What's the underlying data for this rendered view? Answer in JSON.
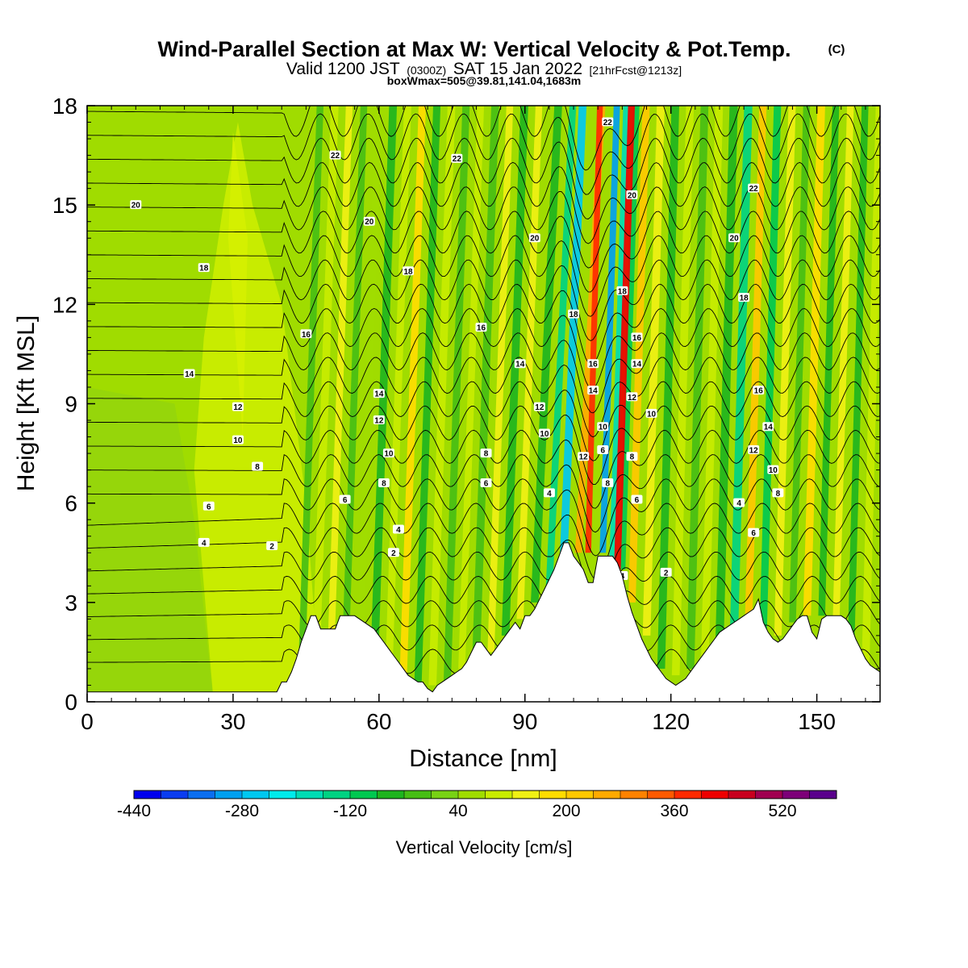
{
  "header": {
    "title_main": "Wind-Parallel Section at Max W: Vertical Velocity & Pot.Temp.",
    "title_mark": "(C)",
    "valid_a": "Valid 1200 JST",
    "valid_b": "(0300Z)",
    "valid_c": "SAT 15 Jan 2022",
    "valid_d": "[21hrFcst@1213z]",
    "box_info": "boxWmax=505@39.81,141.04,1683m"
  },
  "chart_data": {
    "type": "heatmap",
    "title": "Wind-Parallel Section at Max W: Vertical Velocity & Pot.Temp.",
    "xlabel": "Distance [nm]",
    "ylabel": "Height [Kft MSL]",
    "xlim": [
      0,
      163
    ],
    "ylim": [
      0,
      18
    ],
    "x_ticks": [
      "0",
      "30",
      "60",
      "90",
      "120",
      "150"
    ],
    "y_ticks": [
      "0",
      "3",
      "6",
      "9",
      "12",
      "15",
      "18"
    ],
    "colorbar": {
      "label": "Vertical Velocity [cm/s]",
      "tick_labels": [
        "-440",
        "-280",
        "-120",
        "40",
        "200",
        "360",
        "520"
      ],
      "levels_min": -440,
      "levels_step": 40,
      "colors": [
        "#0000ee",
        "#0a3cf0",
        "#0a6ef0",
        "#00a0f0",
        "#00c8f0",
        "#00ebeb",
        "#00dcb4",
        "#00d282",
        "#00c850",
        "#1eb41e",
        "#46be14",
        "#78d214",
        "#a0dc00",
        "#c8ec00",
        "#f0f014",
        "#ffdc00",
        "#ffc800",
        "#ffaa00",
        "#ff8200",
        "#ff5a00",
        "#ff2a00",
        "#ee0000",
        "#c8001e",
        "#a00050",
        "#7d0078",
        "#5a008c"
      ]
    },
    "series": [
      {
        "name": "Vertical Velocity [cm/s]",
        "max_label": "505",
        "min_approx": -300
      },
      {
        "name": "Pot.Temp.",
        "contour_values": [
          2,
          4,
          6,
          8,
          10,
          12,
          14,
          16,
          18,
          20,
          22
        ]
      }
    ],
    "terrain_kft": {
      "x": [
        0,
        39,
        40,
        41,
        42,
        43,
        44,
        45,
        46,
        47,
        48,
        51,
        52,
        53,
        54,
        55,
        59,
        60,
        61,
        62,
        63,
        64,
        65,
        66,
        67,
        68,
        69,
        70,
        71,
        72,
        73,
        74,
        75,
        76,
        77,
        78,
        79,
        80,
        81,
        82,
        83,
        84,
        85,
        86,
        87,
        88,
        89,
        90,
        91,
        92,
        93,
        94,
        95,
        96,
        97,
        98,
        99,
        100,
        101,
        102,
        103,
        104,
        105,
        106,
        107,
        108,
        109,
        110,
        111,
        112,
        113,
        114,
        115,
        116,
        117,
        118,
        119,
        120,
        121,
        122,
        123,
        124,
        125,
        126,
        127,
        128,
        129,
        130,
        131,
        132,
        133,
        134,
        135,
        136,
        137,
        138,
        139,
        140,
        141,
        142,
        143,
        144,
        145,
        146,
        147,
        148,
        149,
        150,
        151,
        152,
        153,
        154,
        155,
        156,
        157,
        158,
        159,
        160,
        161,
        162,
        163
      ],
      "h": [
        0.3,
        0.3,
        0.6,
        0.6,
        0.9,
        1.3,
        1.8,
        2.2,
        2.6,
        2.6,
        2.2,
        2.2,
        2.6,
        2.6,
        2.6,
        2.6,
        2.2,
        2.0,
        1.8,
        1.6,
        1.4,
        1.2,
        1.0,
        0.8,
        0.7,
        0.6,
        0.6,
        0.4,
        0.3,
        0.5,
        0.6,
        0.7,
        0.8,
        0.9,
        1.0,
        1.2,
        1.5,
        1.8,
        1.8,
        1.6,
        1.4,
        1.6,
        1.8,
        2.0,
        2.2,
        2.4,
        2.2,
        2.6,
        2.6,
        2.8,
        3.1,
        3.4,
        3.7,
        4.0,
        4.4,
        4.8,
        4.8,
        4.4,
        4.2,
        4.0,
        3.6,
        3.6,
        4.4,
        4.4,
        4.4,
        4.4,
        4.2,
        3.8,
        3.2,
        2.7,
        2.3,
        1.9,
        1.6,
        1.3,
        1.1,
        0.9,
        0.7,
        0.6,
        0.5,
        0.6,
        0.7,
        0.9,
        1.1,
        1.3,
        1.5,
        1.7,
        1.9,
        2.1,
        2.2,
        2.3,
        2.4,
        2.5,
        2.6,
        2.7,
        2.8,
        3.1,
        2.4,
        2.1,
        1.9,
        1.8,
        1.9,
        2.1,
        2.3,
        2.5,
        2.6,
        2.6,
        2.1,
        1.9,
        2.5,
        2.6,
        2.6,
        2.6,
        2.6,
        2.5,
        2.3,
        1.9,
        1.6,
        1.3,
        1.1,
        1.0,
        0.9
      ]
    }
  }
}
